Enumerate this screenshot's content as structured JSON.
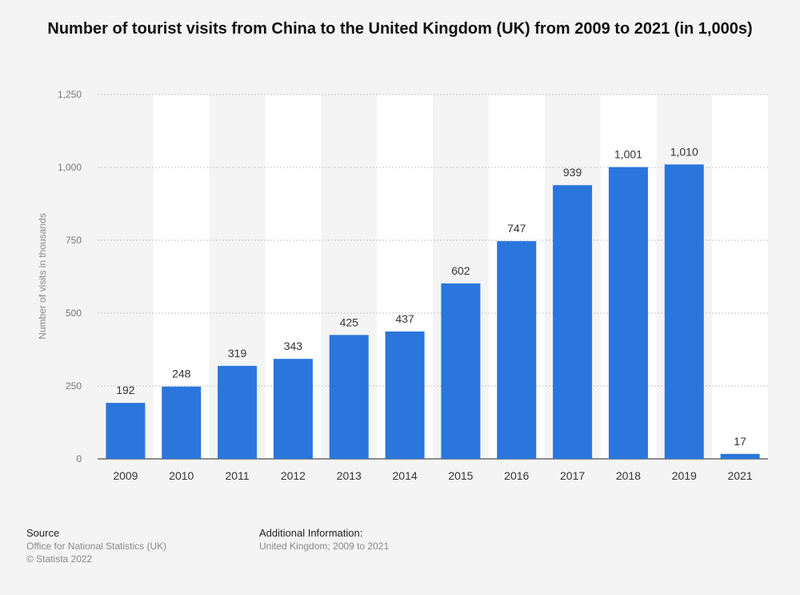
{
  "chart_data": {
    "type": "bar",
    "title": "Number of tourist visits from China to the United Kingdom (UK) from 2009 to 2021 (in 1,000s)",
    "xlabel": "",
    "ylabel": "Number of visits in thousands",
    "categories": [
      "2009",
      "2010",
      "2011",
      "2012",
      "2013",
      "2014",
      "2015",
      "2016",
      "2017",
      "2018",
      "2019",
      "2021"
    ],
    "values": [
      192,
      248,
      319,
      343,
      425,
      437,
      602,
      747,
      939,
      1001,
      1010,
      17
    ],
    "value_labels": [
      "192",
      "248",
      "319",
      "343",
      "425",
      "437",
      "602",
      "747",
      "939",
      "1,001",
      "1,010",
      "17"
    ],
    "ylim": [
      0,
      1250
    ],
    "yticks": [
      0,
      250,
      500,
      750,
      1000,
      1250
    ],
    "ytick_labels": [
      "0",
      "250",
      "500",
      "750",
      "1,000",
      "1,250"
    ],
    "grid": true,
    "bar_color": "#2a76dd"
  },
  "footer": {
    "source_heading": "Source",
    "source_line1": "Office for National Statistics (UK)",
    "source_line2": "© Statista 2022",
    "info_heading": "Additional Information:",
    "info_line1": "United Kingdom; 2009 to 2021"
  }
}
